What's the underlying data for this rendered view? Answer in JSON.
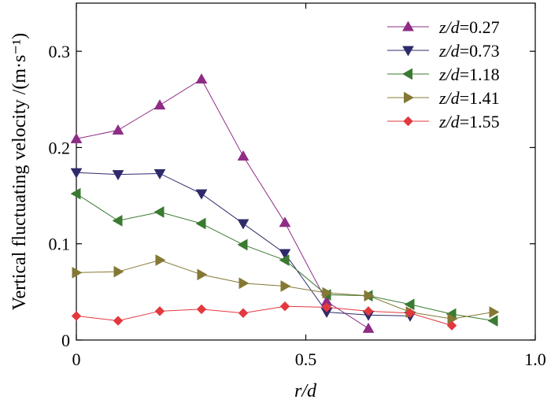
{
  "chart_data": {
    "type": "line",
    "xlabel": "r/d",
    "ylabel": "Vertical fluctuating velocity /(m·s⁻¹)",
    "xlim": [
      0,
      1.0
    ],
    "ylim": [
      0,
      0.35
    ],
    "x_ticks": [
      "0",
      "0.5",
      "1.0"
    ],
    "y_ticks": [
      "0",
      "0.1",
      "0.2",
      "0.3"
    ],
    "legend_position": "top-right",
    "grid": false,
    "series": [
      {
        "name": "z/d=0.27",
        "label_parts": {
          "italic": "z/d",
          "rest": "=0.27"
        },
        "color": "#8e2c86",
        "marker": "triangle-up",
        "x": [
          0,
          0.0909,
          0.1818,
          0.2727,
          0.3636,
          0.4545,
          0.5455,
          0.6364
        ],
        "y": [
          0.209,
          0.218,
          0.244,
          0.271,
          0.191,
          0.122,
          0.04,
          0.012
        ]
      },
      {
        "name": "z/d=0.73",
        "label_parts": {
          "italic": "z/d",
          "rest": "=0.73"
        },
        "color": "#2e2a6a",
        "marker": "triangle-down",
        "x": [
          0,
          0.0909,
          0.1818,
          0.2727,
          0.3636,
          0.4545,
          0.5455,
          0.6364,
          0.7273
        ],
        "y": [
          0.174,
          0.172,
          0.173,
          0.152,
          0.121,
          0.09,
          0.029,
          0.026,
          0.025
        ]
      },
      {
        "name": "z/d=1.18",
        "label_parts": {
          "italic": "z/d",
          "rest": "=1.18"
        },
        "color": "#3a7a32",
        "marker": "triangle-left",
        "x": [
          0,
          0.0909,
          0.1818,
          0.2727,
          0.3636,
          0.4545,
          0.5455,
          0.6364,
          0.7273,
          0.8182,
          0.9091
        ],
        "y": [
          0.152,
          0.124,
          0.133,
          0.121,
          0.099,
          0.083,
          0.047,
          0.046,
          0.037,
          0.027,
          0.02
        ]
      },
      {
        "name": "z/d=1.41",
        "label_parts": {
          "italic": "z/d",
          "rest": "=1.41"
        },
        "color": "#847834",
        "marker": "triangle-right",
        "x": [
          0,
          0.0909,
          0.1818,
          0.2727,
          0.3636,
          0.4545,
          0.5455,
          0.6364,
          0.7273,
          0.8182,
          0.9091
        ],
        "y": [
          0.07,
          0.071,
          0.083,
          0.068,
          0.059,
          0.056,
          0.049,
          0.046,
          0.029,
          0.022,
          0.029
        ]
      },
      {
        "name": "z/d=1.55",
        "label_parts": {
          "italic": "z/d",
          "rest": "=1.55"
        },
        "color": "#e2383e",
        "marker": "diamond",
        "x": [
          0,
          0.0909,
          0.1818,
          0.2727,
          0.3636,
          0.4545,
          0.5455,
          0.6364,
          0.7273,
          0.8182
        ],
        "y": [
          0.025,
          0.02,
          0.03,
          0.032,
          0.028,
          0.035,
          0.034,
          0.03,
          0.028,
          0.015
        ]
      }
    ]
  }
}
